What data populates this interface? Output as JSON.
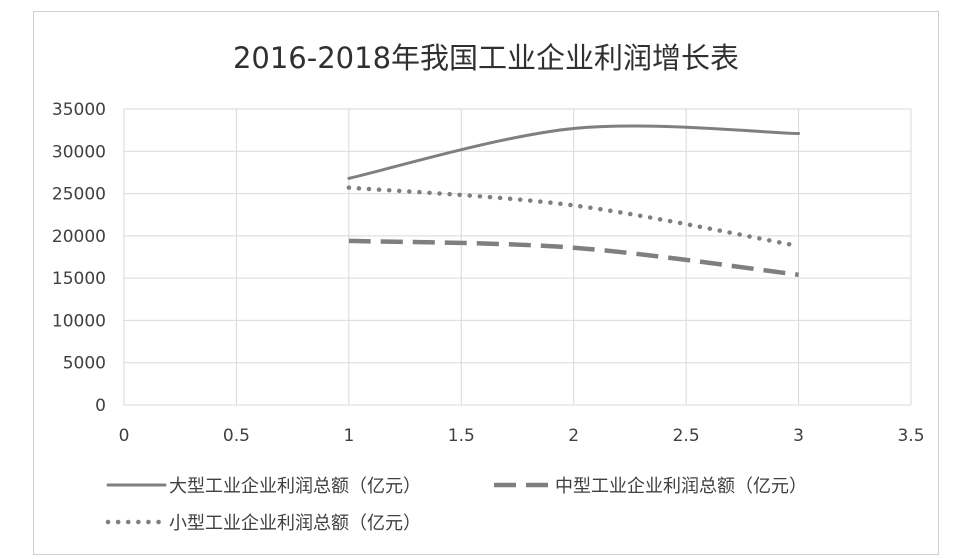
{
  "chart_data": {
    "type": "scatter",
    "title": "2016-2018年我国工业企业利润增长表",
    "xlabel": "",
    "ylabel": "",
    "xlim": [
      0,
      3.5
    ],
    "ylim": [
      0,
      35000
    ],
    "x_ticks": [
      "0",
      "0.5",
      "1",
      "1.5",
      "2",
      "2.5",
      "3",
      "3.5"
    ],
    "y_ticks": [
      "0",
      "5000",
      "10000",
      "15000",
      "20000",
      "25000",
      "30000",
      "35000"
    ],
    "grid": true,
    "legend_position": "bottom",
    "smooth": true,
    "series": [
      {
        "name": "大型工业企业利润总额（亿元）",
        "x": [
          1,
          2,
          3
        ],
        "y": [
          26800,
          32700,
          32100
        ],
        "style": "solid",
        "color": "#7f7f7f"
      },
      {
        "name": "中型工业企业利润总额（亿元）",
        "x": [
          1,
          2,
          3
        ],
        "y": [
          19400,
          18600,
          15400
        ],
        "style": "dash",
        "color": "#7f7f7f"
      },
      {
        "name": "小型工业企业利润总额（亿元）",
        "x": [
          1,
          2,
          3
        ],
        "y": [
          25700,
          23600,
          18800
        ],
        "style": "dot",
        "color": "#7f7f7f"
      }
    ]
  }
}
